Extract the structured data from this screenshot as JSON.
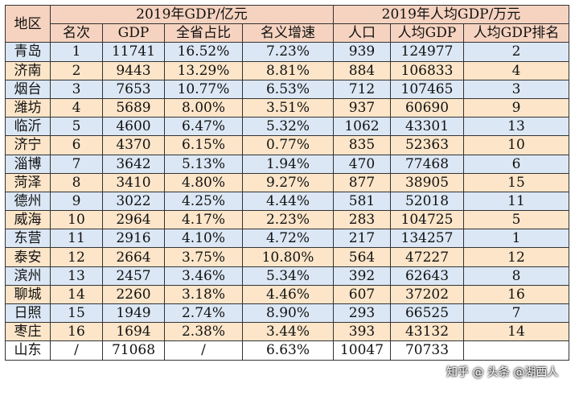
{
  "headers": {
    "region": "地区",
    "group_gdp": "2019年GDP/亿元",
    "group_per_capita": "2019年人均GDP/万元",
    "rank": "名次",
    "gdp": "GDP",
    "share": "全省占比",
    "growth": "名义增速",
    "population": "人口",
    "per_capita_gdp": "人均GDP",
    "per_capita_rank": "人均GDP排名"
  },
  "rows": [
    {
      "city": "青岛",
      "rank": "1",
      "gdp": "11741",
      "share": "16.52%",
      "growth": "7.23%",
      "pop": "939",
      "pc": "124977",
      "pcrank": "2"
    },
    {
      "city": "济南",
      "rank": "2",
      "gdp": "9443",
      "share": "13.29%",
      "growth": "8.81%",
      "pop": "884",
      "pc": "106833",
      "pcrank": "4"
    },
    {
      "city": "烟台",
      "rank": "3",
      "gdp": "7653",
      "share": "10.77%",
      "growth": "6.53%",
      "pop": "712",
      "pc": "107465",
      "pcrank": "3"
    },
    {
      "city": "潍坊",
      "rank": "4",
      "gdp": "5689",
      "share": "8.00%",
      "growth": "3.51%",
      "pop": "937",
      "pc": "60690",
      "pcrank": "9"
    },
    {
      "city": "临沂",
      "rank": "5",
      "gdp": "4600",
      "share": "6.47%",
      "growth": "5.32%",
      "pop": "1062",
      "pc": "43301",
      "pcrank": "13"
    },
    {
      "city": "济宁",
      "rank": "6",
      "gdp": "4370",
      "share": "6.15%",
      "growth": "0.77%",
      "pop": "835",
      "pc": "52363",
      "pcrank": "10"
    },
    {
      "city": "淄博",
      "rank": "7",
      "gdp": "3642",
      "share": "5.13%",
      "growth": "1.94%",
      "pop": "470",
      "pc": "77468",
      "pcrank": "6"
    },
    {
      "city": "菏泽",
      "rank": "8",
      "gdp": "3410",
      "share": "4.80%",
      "growth": "9.27%",
      "pop": "877",
      "pc": "38905",
      "pcrank": "15"
    },
    {
      "city": "德州",
      "rank": "9",
      "gdp": "3022",
      "share": "4.25%",
      "growth": "4.44%",
      "pop": "581",
      "pc": "52018",
      "pcrank": "11"
    },
    {
      "city": "威海",
      "rank": "10",
      "gdp": "2964",
      "share": "4.17%",
      "growth": "2.23%",
      "pop": "283",
      "pc": "104725",
      "pcrank": "5"
    },
    {
      "city": "东营",
      "rank": "11",
      "gdp": "2916",
      "share": "4.10%",
      "growth": "4.72%",
      "pop": "217",
      "pc": "134257",
      "pcrank": "1"
    },
    {
      "city": "泰安",
      "rank": "12",
      "gdp": "2664",
      "share": "3.75%",
      "growth": "10.80%",
      "pop": "564",
      "pc": "47227",
      "pcrank": "12"
    },
    {
      "city": "滨州",
      "rank": "13",
      "gdp": "2457",
      "share": "3.46%",
      "growth": "5.34%",
      "pop": "392",
      "pc": "62643",
      "pcrank": "8"
    },
    {
      "city": "聊城",
      "rank": "14",
      "gdp": "2260",
      "share": "3.18%",
      "growth": "4.46%",
      "pop": "607",
      "pc": "37202",
      "pcrank": "16"
    },
    {
      "city": "日照",
      "rank": "15",
      "gdp": "1949",
      "share": "2.74%",
      "growth": "8.90%",
      "pop": "293",
      "pc": "66525",
      "pcrank": "7"
    },
    {
      "city": "枣庄",
      "rank": "16",
      "gdp": "1694",
      "share": "2.38%",
      "growth": "3.44%",
      "pop": "393",
      "pc": "43132",
      "pcrank": "14"
    }
  ],
  "total": {
    "city": "山东",
    "rank": "/",
    "gdp": "71068",
    "share": "/",
    "growth": "6.63%",
    "pop": "10047",
    "pc": "70733",
    "pcrank": ""
  },
  "watermark": "知乎 @ 头条 @湖西人"
}
